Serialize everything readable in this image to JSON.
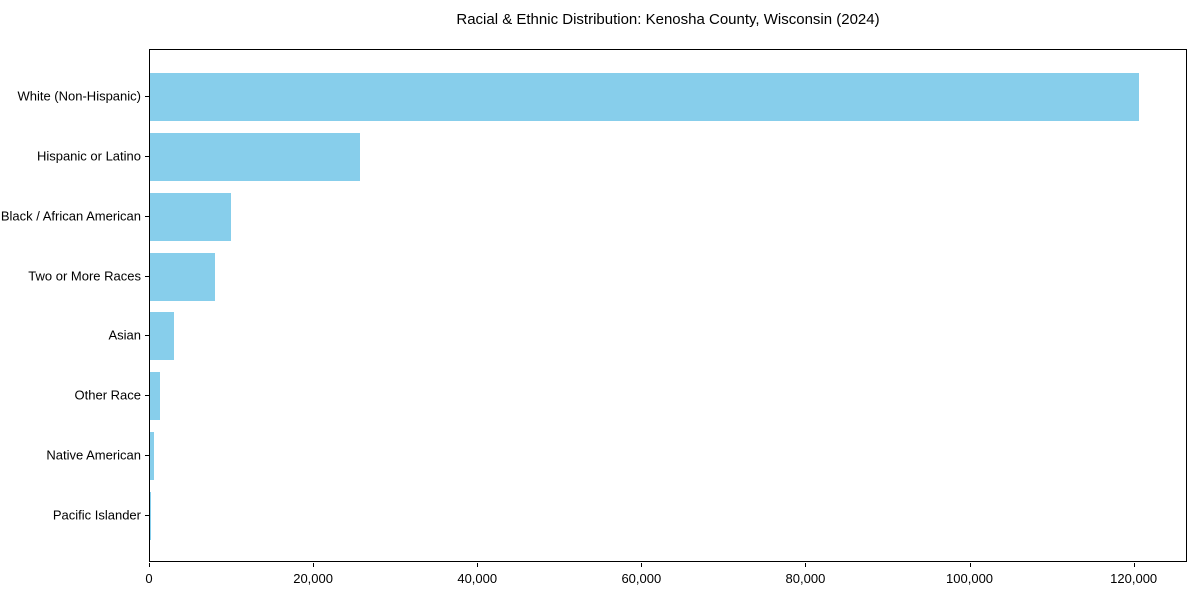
{
  "figure": {
    "background": "#ffffff"
  },
  "chart_data": {
    "type": "bar",
    "orientation": "horizontal",
    "title": "Racial & Ethnic Distribution: Kenosha County, Wisconsin (2024)",
    "categories": [
      "White (Non-Hispanic)",
      "Hispanic or Latino",
      "Black / African American",
      "Two or More Races",
      "Asian",
      "Other Race",
      "Native American",
      "Pacific Islander"
    ],
    "values": [
      120500,
      25600,
      9900,
      7900,
      2900,
      1200,
      500,
      100
    ],
    "xlabel": "",
    "ylabel": "",
    "xlim": [
      0,
      126500
    ],
    "xticks": [
      0,
      20000,
      40000,
      60000,
      80000,
      100000,
      120000
    ],
    "xtick_labels": [
      "0",
      "20,000",
      "40,000",
      "60,000",
      "80,000",
      "100,000",
      "120,000"
    ],
    "bar_color": "#87CEEB",
    "axis_color": "#000000",
    "text_color": "#000000",
    "grid": false,
    "legend": null
  }
}
